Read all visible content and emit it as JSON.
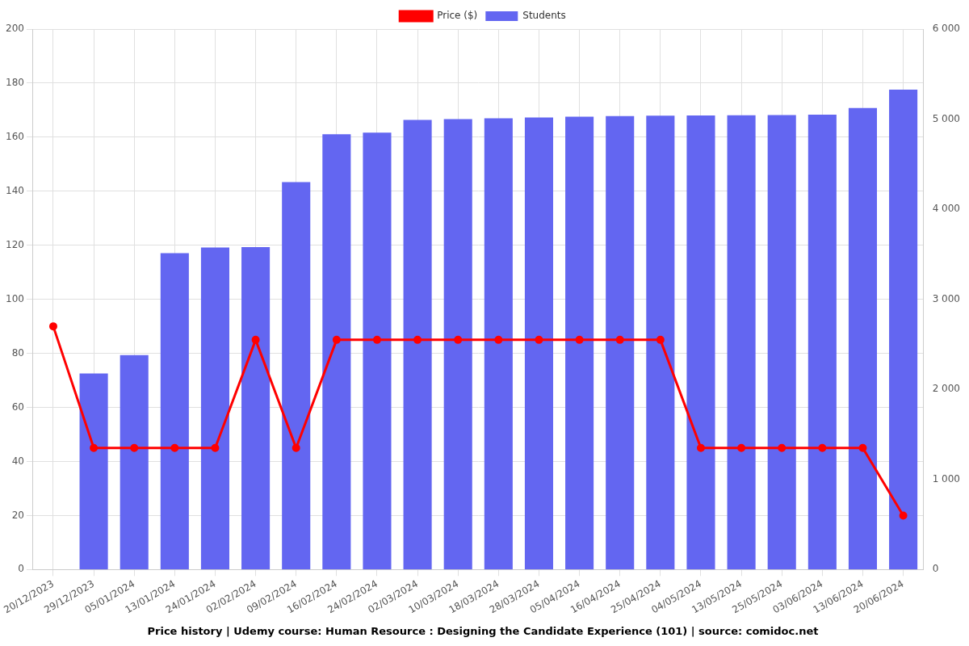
{
  "chart_data": {
    "type": "bar",
    "title": "Price history | Udemy course: Human Resource : Designing the Candidate Experience (101) | source: comidoc.net",
    "categories": [
      "20/12/2023",
      "29/12/2023",
      "05/01/2024",
      "13/01/2024",
      "24/01/2024",
      "02/02/2024",
      "09/02/2024",
      "16/02/2024",
      "24/02/2024",
      "02/03/2024",
      "10/03/2024",
      "18/03/2024",
      "28/03/2024",
      "05/04/2024",
      "16/04/2024",
      "25/04/2024",
      "04/05/2024",
      "13/05/2024",
      "25/05/2024",
      "03/06/2024",
      "13/06/2024",
      "20/06/2024"
    ],
    "series": [
      {
        "name": "Price ($)",
        "type": "line",
        "color": "#ff0000",
        "marker": "circle",
        "values": [
          90,
          45,
          45,
          45,
          45,
          85,
          45,
          85,
          85,
          85,
          85,
          85,
          85,
          85,
          85,
          85,
          45,
          45,
          45,
          45,
          45,
          20
        ]
      },
      {
        "name": "Students",
        "type": "bar",
        "color": "#6366f1",
        "axis": "y2",
        "values": [
          null,
          2177,
          2381,
          3513,
          3575,
          3580,
          4301,
          4832,
          4850,
          4991,
          5000,
          5009,
          5018,
          5027,
          5035,
          5038,
          5040,
          5043,
          5045,
          5050,
          5124,
          5327
        ]
      }
    ],
    "ylim": [
      0,
      200
    ],
    "yticks": [
      0,
      20,
      40,
      60,
      80,
      100,
      120,
      140,
      160,
      180,
      200
    ],
    "y2lim": [
      0,
      6000
    ],
    "y2ticks": [
      0,
      {
        "value": 1000,
        "label": "1 000"
      },
      {
        "value": 2000,
        "label": "2 000"
      },
      {
        "value": 3000,
        "label": "3 000"
      },
      {
        "value": 4000,
        "label": "4 000"
      },
      {
        "value": 5000,
        "label": "5 000"
      },
      {
        "value": 6000,
        "label": "6 000"
      }
    ],
    "grid": true,
    "legend": "top"
  }
}
